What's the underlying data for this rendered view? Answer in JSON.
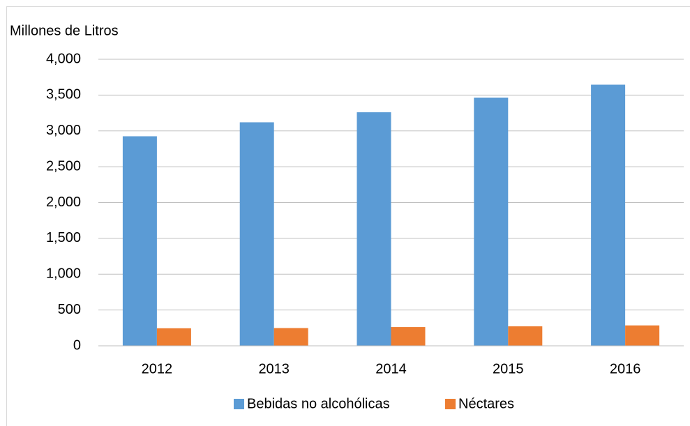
{
  "chart_data": {
    "type": "bar",
    "y_axis_label": "Millones de Litros",
    "categories": [
      "2012",
      "2013",
      "2014",
      "2015",
      "2016"
    ],
    "series": [
      {
        "name": "Bebidas no alcohólicas",
        "color": "#5b9bd5",
        "values": [
          2925,
          3120,
          3260,
          3465,
          3645
        ]
      },
      {
        "name": "Néctares",
        "color": "#ed7d31",
        "values": [
          245,
          248,
          262,
          272,
          285
        ]
      }
    ],
    "ylim": [
      0,
      4000
    ],
    "yticks": [
      0,
      500,
      {
        "value": 1000,
        "label": "1,000"
      },
      {
        "value": 1500,
        "label": "1,500"
      },
      {
        "value": 2000,
        "label": "2,000"
      },
      {
        "value": 2500,
        "label": "2,500"
      },
      {
        "value": 3000,
        "label": "3,000"
      },
      {
        "value": 3500,
        "label": "3,500"
      },
      {
        "value": 4000,
        "label": "4,000"
      }
    ],
    "grid": true
  }
}
